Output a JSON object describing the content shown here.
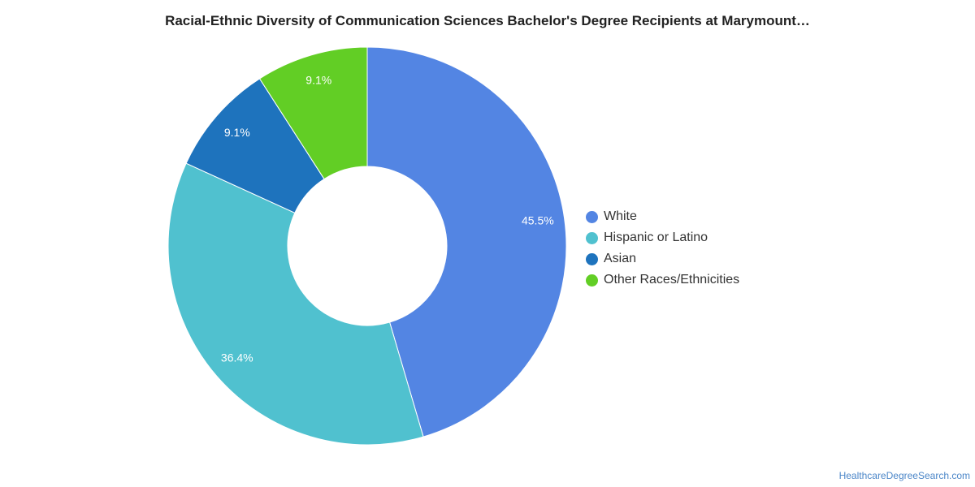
{
  "chart_data": {
    "type": "pie",
    "variant": "donut",
    "title": "Racial-Ethnic Diversity of Communication Sciences Bachelor's Degree Recipients at Marymount…",
    "slices": [
      {
        "name": "White",
        "value": 45.5,
        "label": "45.5%",
        "color": "#5385e3"
      },
      {
        "name": "Hispanic or Latino",
        "value": 36.4,
        "label": "36.4%",
        "color": "#50c1cf"
      },
      {
        "name": "Asian",
        "value": 9.1,
        "label": "9.1%",
        "color": "#1e73bd"
      },
      {
        "name": "Other Races/Ethnicities",
        "value": 9.1,
        "label": "9.1%",
        "color": "#62ce25"
      }
    ],
    "legend_position": "right"
  },
  "footer": {
    "source": "HealthcareDegreeSearch.com"
  }
}
